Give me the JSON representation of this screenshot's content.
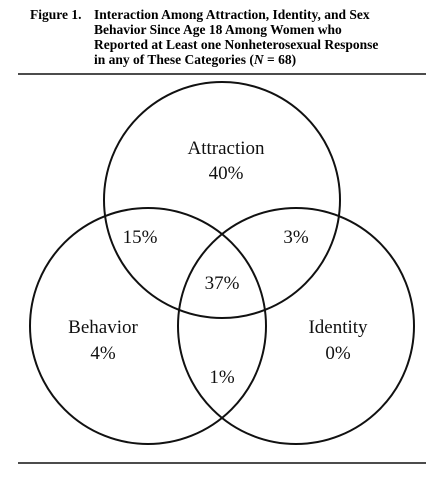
{
  "figure": {
    "label": "Figure 1.",
    "title_lines": [
      "Interaction Among Attraction, Identity, and Sex",
      "Behavior Since Age 18 Among Women who",
      "Reported at Least one Nonheterosexual Response"
    ],
    "title_last_line": [
      "in any of These Categories (",
      "N",
      " = 68)"
    ]
  },
  "venn": {
    "sets": [
      {
        "name": "Attraction",
        "value": "40%"
      },
      {
        "name": "Behavior",
        "value": "4%"
      },
      {
        "name": "Identity",
        "value": "0%"
      }
    ],
    "overlaps": {
      "attraction_behavior": "15%",
      "attraction_identity": "3%",
      "behavior_identity": "1%",
      "all_three": "37%"
    }
  }
}
